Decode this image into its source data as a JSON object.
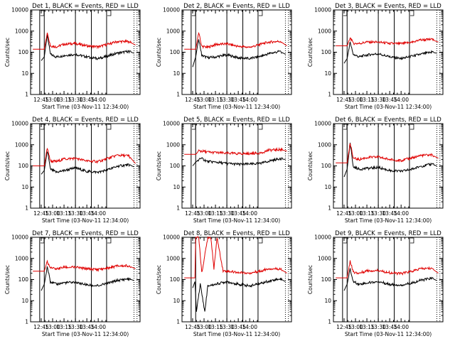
{
  "figure": {
    "background": "#ffffff"
  },
  "chart_data": [
    {
      "type": "line",
      "title": "Det 1, BLACK = Events, RED = LLD",
      "xlabel": "Start Time (03-Nov-11 12:34:00)",
      "ylabel": "Counts/sec",
      "x_ticks": [
        "12:45",
        "13:00",
        "13:15",
        "13:30",
        "13:45",
        "14:00"
      ],
      "y_ticks": [
        "1",
        "10",
        "100",
        "1000",
        "10000"
      ],
      "y_scale": "log",
      "ylim": [
        1,
        10000
      ],
      "grid": false,
      "legend": "none",
      "series": [
        {
          "color": "#000000",
          "x_min": [
            0,
            4,
            8,
            12,
            20,
            30,
            45,
            60,
            75,
            90,
            100,
            115,
            122
          ],
          "values": [
            40,
            60,
            700,
            80,
            60,
            70,
            80,
            60,
            50,
            70,
            90,
            110,
            90
          ]
        },
        {
          "color": "#e00000",
          "x_min": [
            -11,
            4,
            8,
            12,
            20,
            30,
            45,
            60,
            75,
            90,
            100,
            115,
            124
          ],
          "values": [
            140,
            140,
            900,
            200,
            180,
            240,
            260,
            200,
            180,
            250,
            320,
            320,
            220
          ]
        }
      ]
    },
    {
      "type": "line",
      "title": "Det 2, BLACK = Events, RED = LLD",
      "xlabel": "Start Time (03-Nov-11 12:34:00)",
      "ylabel": "Counts/sec",
      "x_ticks": [
        "12:45",
        "13:00",
        "13:15",
        "13:30",
        "13:45",
        "14:00"
      ],
      "y_ticks": [
        "1",
        "10",
        "100",
        "1000",
        "10000"
      ],
      "y_scale": "log",
      "ylim": [
        1,
        10000
      ],
      "grid": false,
      "legend": "none",
      "series": [
        {
          "color": "#000000",
          "x_min": [
            0,
            4,
            8,
            12,
            20,
            30,
            45,
            60,
            75,
            90,
            100,
            115,
            122
          ],
          "values": [
            20,
            60,
            450,
            70,
            55,
            60,
            75,
            55,
            50,
            65,
            85,
            110,
            80
          ]
        },
        {
          "color": "#e00000",
          "x_min": [
            -11,
            4,
            8,
            12,
            20,
            30,
            45,
            60,
            75,
            90,
            100,
            115,
            124
          ],
          "values": [
            140,
            140,
            800,
            190,
            170,
            230,
            250,
            190,
            170,
            240,
            300,
            330,
            200
          ]
        }
      ]
    },
    {
      "type": "line",
      "title": "Det 3, BLACK = Events, RED = LLD",
      "xlabel": "Start Time (03-Nov-11 12:34:00)",
      "ylabel": "Counts/sec",
      "x_ticks": [
        "12:45",
        "13:00",
        "13:15",
        "13:30",
        "13:45",
        "14:00"
      ],
      "y_ticks": [
        "1",
        "10",
        "100",
        "1000",
        "10000"
      ],
      "y_scale": "log",
      "ylim": [
        1,
        10000
      ],
      "grid": false,
      "legend": "none",
      "series": [
        {
          "color": "#000000",
          "x_min": [
            0,
            4,
            8,
            12,
            20,
            30,
            45,
            60,
            75,
            90,
            100,
            115,
            122
          ],
          "values": [
            30,
            50,
            300,
            80,
            60,
            75,
            85,
            60,
            50,
            65,
            80,
            100,
            90
          ]
        },
        {
          "color": "#e00000",
          "x_min": [
            -11,
            4,
            8,
            12,
            20,
            30,
            45,
            60,
            75,
            90,
            100,
            115,
            124
          ],
          "values": [
            200,
            200,
            500,
            260,
            260,
            300,
            300,
            260,
            250,
            300,
            380,
            400,
            300
          ]
        }
      ]
    },
    {
      "type": "line",
      "title": "Det 4, BLACK = Events, RED = LLD",
      "xlabel": "Start Time (03-Nov-11 12:34:00)",
      "ylabel": "Counts/sec",
      "x_ticks": [
        "12:45",
        "13:00",
        "13:15",
        "13:30",
        "13:45",
        "14:00"
      ],
      "y_ticks": [
        "1",
        "10",
        "100",
        "1000",
        "10000"
      ],
      "y_scale": "log",
      "ylim": [
        1,
        10000
      ],
      "grid": false,
      "legend": "none",
      "series": [
        {
          "color": "#000000",
          "x_min": [
            0,
            4,
            8,
            12,
            20,
            30,
            45,
            60,
            75,
            90,
            100,
            115,
            122
          ],
          "values": [
            40,
            60,
            500,
            70,
            50,
            60,
            80,
            55,
            50,
            70,
            95,
            115,
            90
          ]
        },
        {
          "color": "#e00000",
          "x_min": [
            -11,
            4,
            8,
            12,
            20,
            30,
            45,
            60,
            75,
            90,
            100,
            115,
            124
          ],
          "values": [
            100,
            100,
            700,
            170,
            160,
            210,
            230,
            170,
            160,
            240,
            320,
            300,
            130
          ]
        }
      ]
    },
    {
      "type": "line",
      "title": "Det 5, BLACK = Events, RED = LLD",
      "xlabel": "Start Time (03-Nov-11 12:34:00)",
      "ylabel": "Counts/sec",
      "x_ticks": [
        "12:45",
        "13:00",
        "13:15",
        "13:30",
        "13:45",
        "14:00"
      ],
      "y_ticks": [
        "1",
        "10",
        "100",
        "1000",
        "10000"
      ],
      "y_scale": "log",
      "ylim": [
        1,
        10000
      ],
      "grid": false,
      "legend": "none",
      "series": [
        {
          "color": "#000000",
          "x_min": [
            0,
            4,
            8,
            12,
            20,
            30,
            45,
            60,
            75,
            90,
            100,
            115,
            122
          ],
          "values": [
            100,
            150,
            200,
            220,
            160,
            150,
            130,
            120,
            120,
            130,
            170,
            220,
            200
          ]
        },
        {
          "color": "#e00000",
          "x_min": [
            -11,
            4,
            8,
            12,
            20,
            30,
            45,
            60,
            75,
            90,
            100,
            115,
            124
          ],
          "values": [
            350,
            350,
            500,
            500,
            450,
            420,
            400,
            380,
            380,
            420,
            550,
            600,
            500
          ]
        }
      ]
    },
    {
      "type": "line",
      "title": "Det 6, BLACK = Events, RED = LLD",
      "xlabel": "Start Time (03-Nov-11 12:34:00)",
      "ylabel": "Counts/sec",
      "x_ticks": [
        "12:45",
        "13:00",
        "13:15",
        "13:30",
        "13:45",
        "14:00"
      ],
      "y_ticks": [
        "1",
        "10",
        "100",
        "1000",
        "10000"
      ],
      "y_scale": "log",
      "ylim": [
        1,
        10000
      ],
      "grid": false,
      "legend": "none",
      "series": [
        {
          "color": "#000000",
          "x_min": [
            0,
            4,
            8,
            12,
            20,
            30,
            45,
            60,
            75,
            90,
            100,
            115,
            122
          ],
          "values": [
            30,
            70,
            1200,
            90,
            70,
            75,
            85,
            60,
            55,
            70,
            95,
            120,
            100
          ]
        },
        {
          "color": "#e00000",
          "x_min": [
            -11,
            4,
            8,
            12,
            20,
            30,
            45,
            60,
            75,
            90,
            100,
            115,
            124
          ],
          "values": [
            140,
            140,
            1300,
            230,
            200,
            250,
            260,
            200,
            180,
            240,
            310,
            330,
            230
          ]
        }
      ]
    },
    {
      "type": "line",
      "title": "Det 7, BLACK = Events, RED = LLD",
      "xlabel": "Start Time (03-Nov-11 12:34:00)",
      "ylabel": "Counts/sec",
      "x_ticks": [
        "12:45",
        "13:00",
        "13:15",
        "13:30",
        "13:45",
        "14:00"
      ],
      "y_ticks": [
        "1",
        "10",
        "100",
        "1000",
        "10000"
      ],
      "y_scale": "log",
      "ylim": [
        1,
        10000
      ],
      "grid": false,
      "legend": "none",
      "series": [
        {
          "color": "#000000",
          "x_min": [
            0,
            4,
            8,
            12,
            20,
            30,
            45,
            60,
            75,
            90,
            100,
            115,
            122
          ],
          "values": [
            30,
            60,
            400,
            80,
            60,
            70,
            75,
            55,
            50,
            70,
            90,
            110,
            90
          ]
        },
        {
          "color": "#e00000",
          "x_min": [
            -11,
            4,
            8,
            12,
            20,
            30,
            45,
            60,
            75,
            90,
            100,
            115,
            124
          ],
          "values": [
            250,
            250,
            700,
            350,
            320,
            380,
            380,
            320,
            300,
            360,
            440,
            450,
            320
          ]
        }
      ]
    },
    {
      "type": "line",
      "title": "Det 8, BLACK = Events, RED = LLD",
      "xlabel": "Start Time (03-Nov-11 12:34:00)",
      "ylabel": "Counts/sec",
      "x_ticks": [
        "12:45",
        "13:00",
        "13:15",
        "13:30",
        "13:45",
        "14:00"
      ],
      "y_ticks": [
        "1",
        "10",
        "100",
        "1000",
        "10000"
      ],
      "y_scale": "log",
      "ylim": [
        1,
        10000
      ],
      "grid": false,
      "legend": "none",
      "series": [
        {
          "color": "#000000",
          "x_min": [
            0,
            3,
            5,
            10,
            16,
            20,
            30,
            45,
            60,
            75,
            90,
            100,
            115,
            122
          ],
          "values": [
            40,
            80,
            3,
            60,
            3,
            50,
            60,
            80,
            60,
            50,
            65,
            85,
            110,
            80
          ]
        },
        {
          "color": "#e00000",
          "x_min": [
            -11,
            3,
            4,
            8,
            12,
            20,
            24,
            28,
            32,
            40,
            60,
            75,
            90,
            100,
            115,
            124
          ],
          "values": [
            120,
            120,
            10000,
            10000,
            200,
            10000,
            10000,
            300,
            10000,
            260,
            220,
            200,
            260,
            330,
            320,
            200
          ]
        }
      ]
    },
    {
      "type": "line",
      "title": "Det 9, BLACK = Events, RED = LLD",
      "xlabel": "Start Time (03-Nov-11 12:34:00)",
      "ylabel": "Counts/sec",
      "x_ticks": [
        "12:45",
        "13:00",
        "13:15",
        "13:30",
        "13:45",
        "14:00"
      ],
      "y_ticks": [
        "1",
        "10",
        "100",
        "1000",
        "10000"
      ],
      "y_scale": "log",
      "ylim": [
        1,
        10000
      ],
      "grid": false,
      "legend": "none",
      "series": [
        {
          "color": "#000000",
          "x_min": [
            0,
            4,
            8,
            12,
            20,
            30,
            45,
            60,
            75,
            90,
            100,
            115,
            122
          ],
          "values": [
            30,
            60,
            300,
            80,
            60,
            70,
            80,
            60,
            55,
            70,
            90,
            115,
            90
          ]
        },
        {
          "color": "#e00000",
          "x_min": [
            -11,
            4,
            8,
            12,
            20,
            30,
            45,
            60,
            75,
            90,
            100,
            115,
            124
          ],
          "values": [
            120,
            120,
            800,
            220,
            200,
            260,
            270,
            210,
            190,
            250,
            320,
            340,
            200
          ]
        }
      ]
    }
  ]
}
